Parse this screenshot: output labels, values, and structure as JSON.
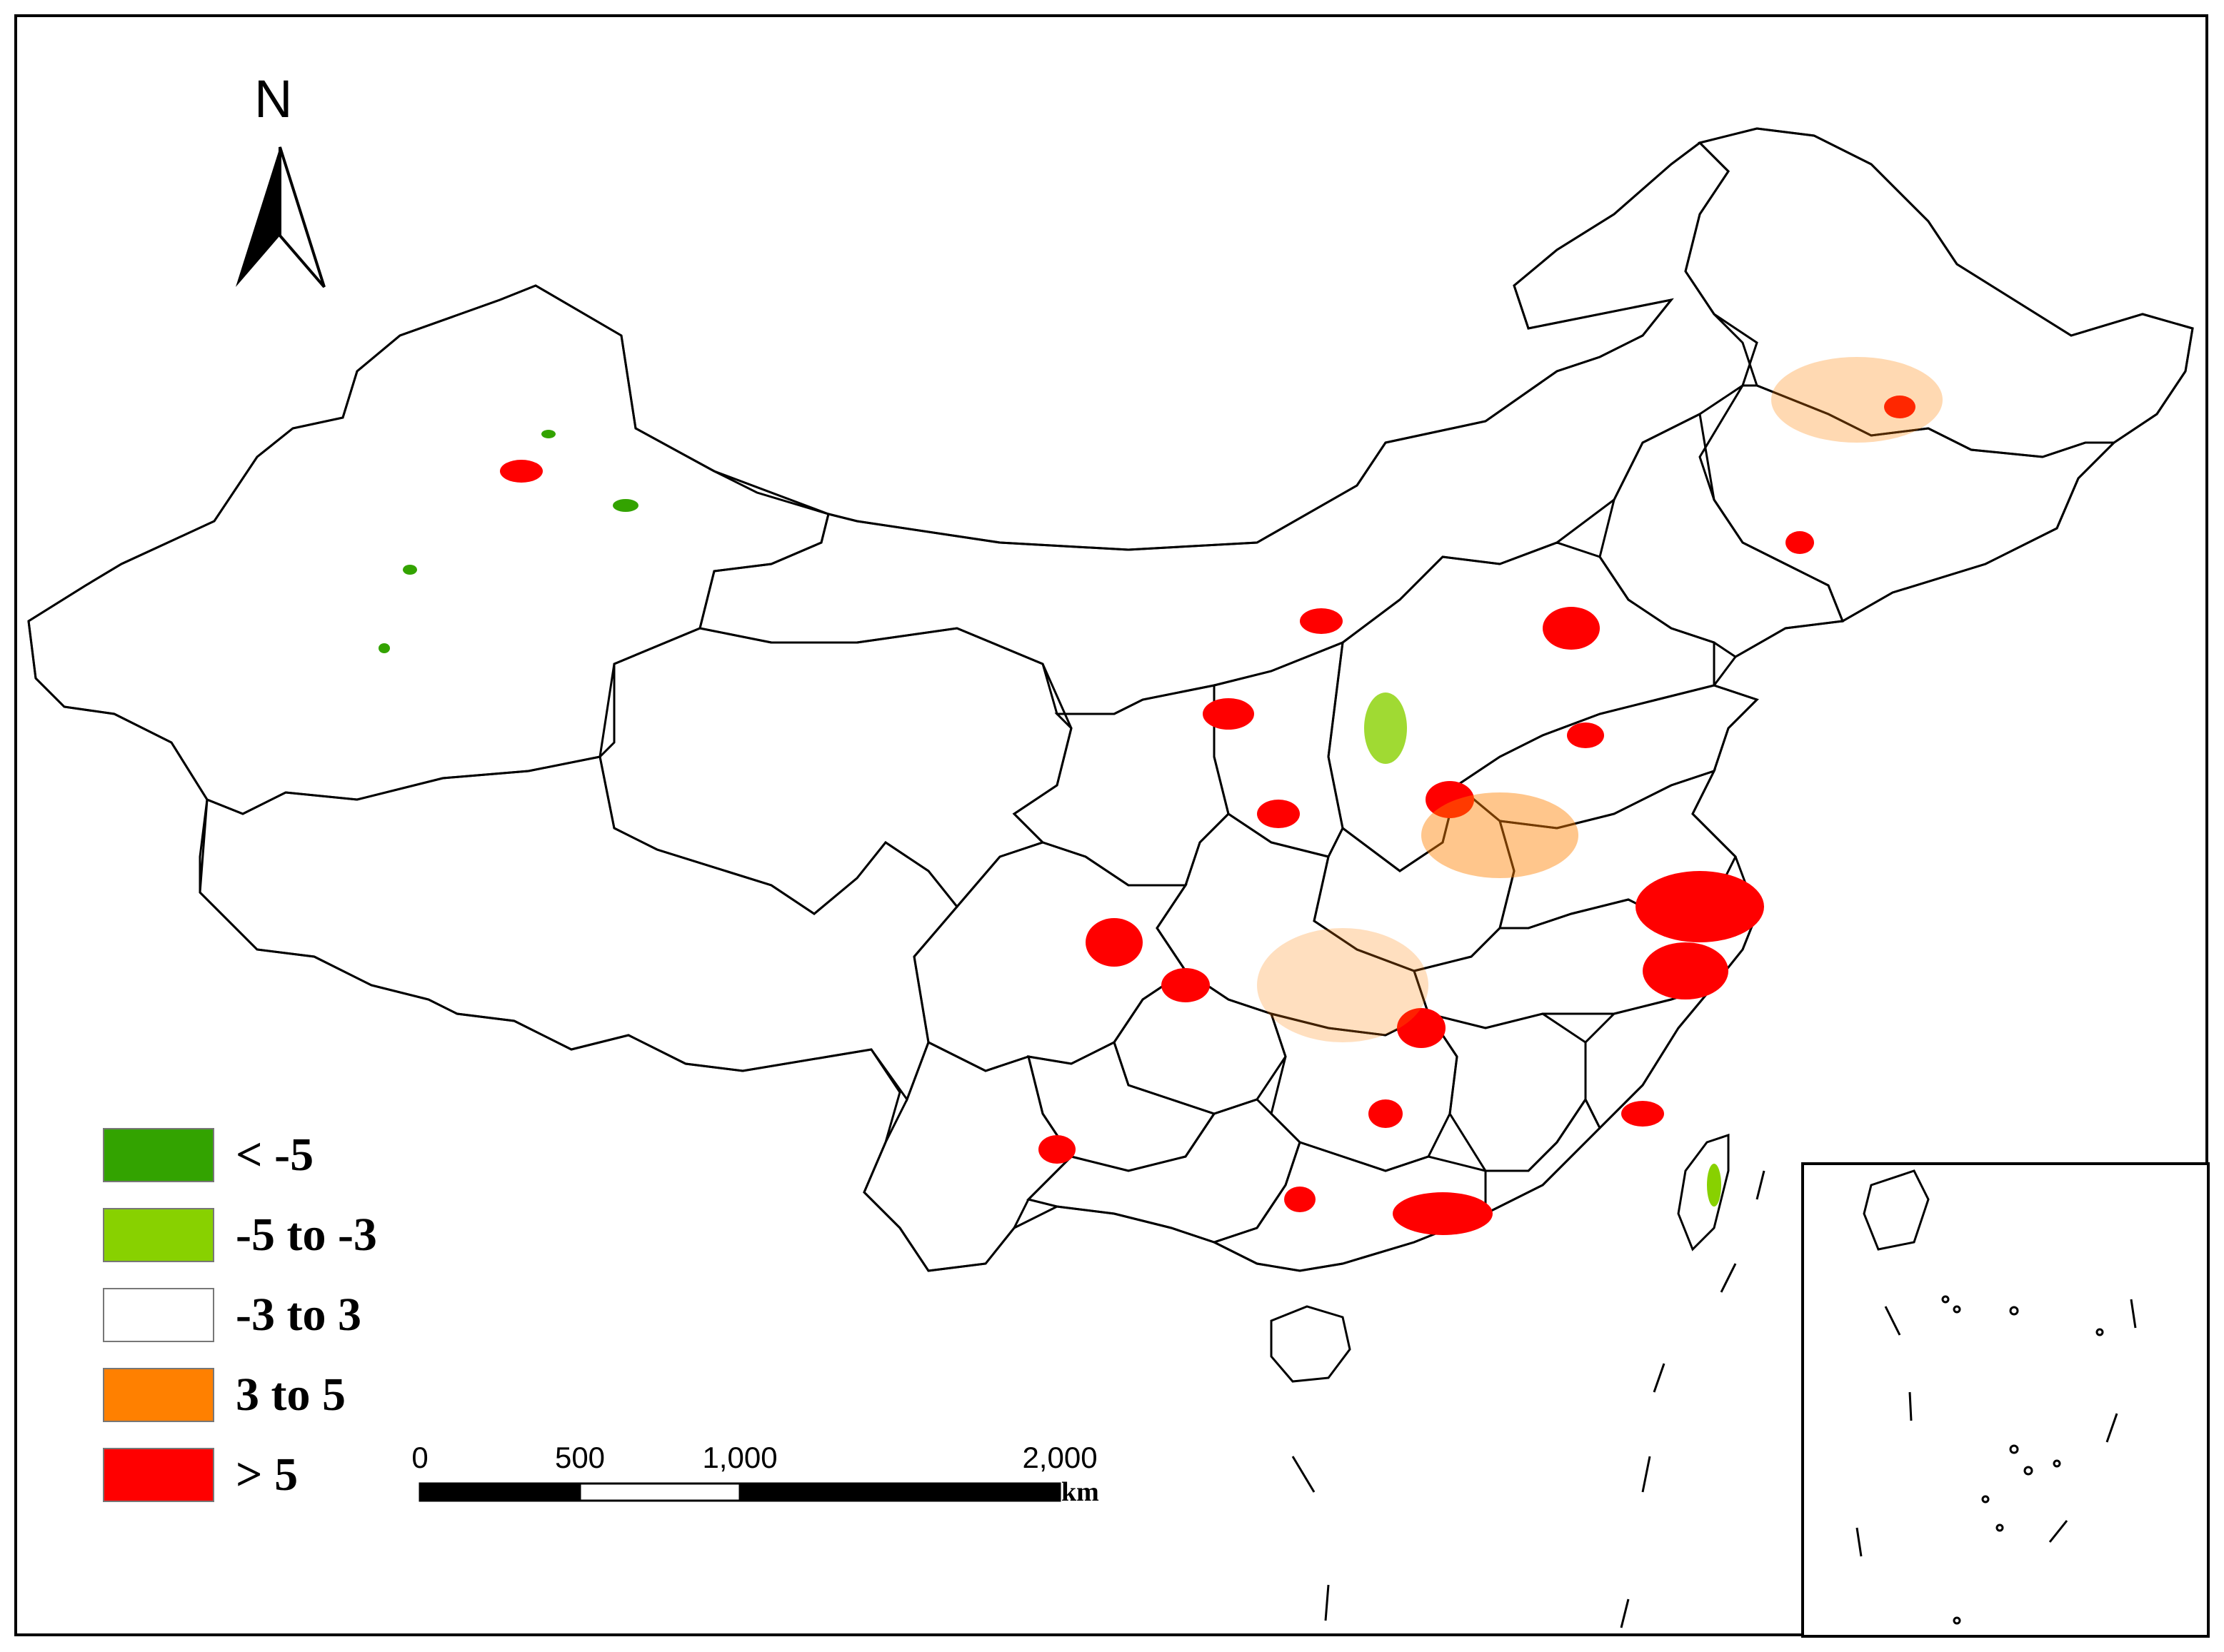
{
  "map": {
    "north_label": "N",
    "legend": [
      {
        "label": "< -5",
        "color": "#33a300"
      },
      {
        "label": "-5 to -3",
        "color": "#88d100"
      },
      {
        "label": "-3 to 3",
        "color": "#ffffff"
      },
      {
        "label": "3 to 5",
        "color": "#ff8000"
      },
      {
        "label": "> 5",
        "color": "#ff0000"
      }
    ],
    "scale_bar": {
      "ticks": [
        "0",
        "500",
        "1,000",
        "2,000"
      ],
      "unit": "km"
    },
    "colors": {
      "boundary": "#000000",
      "background": "#ffffff",
      "high_increase": "#ff0000",
      "moderate_increase": "#ff8000",
      "moderate_decrease": "#88d100",
      "strong_decrease": "#33a300"
    }
  }
}
